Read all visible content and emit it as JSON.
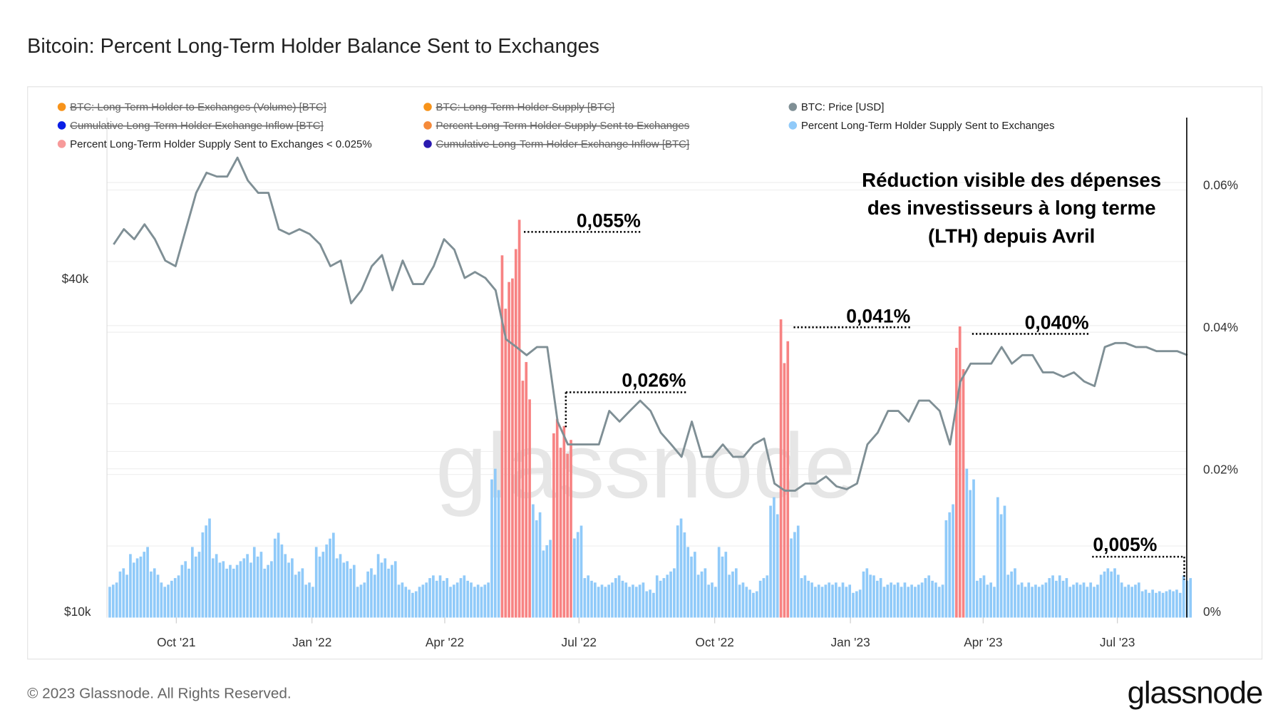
{
  "title": "Bitcoin: Percent Long-Term Holder Balance Sent to Exchanges",
  "footer": {
    "copyright": "© 2023 Glassnode. All Rights Reserved.",
    "logo": "glassnode"
  },
  "watermark": "glassnode",
  "legend": [
    {
      "label": "BTC: Long-Term Holder to Exchanges (Volume) [BTC]",
      "color": "#f7931a",
      "disabled": true
    },
    {
      "label": "BTC: Long-Term Holder Supply [BTC]",
      "color": "#f7931a",
      "disabled": true
    },
    {
      "label": "BTC: Price [USD]",
      "color": "#7f8f95",
      "disabled": false
    },
    {
      "label": "Cumulative Long-Term Holder Exchange Inflow [BTC]",
      "color": "#0a1ee6",
      "disabled": true
    },
    {
      "label": "Percent Long-Term Holder Supply Sent to Exchanges",
      "color": "#f58a3a",
      "disabled": true
    },
    {
      "label": "Percent Long-Term Holder Supply Sent to Exchanges",
      "color": "#90caf9",
      "disabled": false
    },
    {
      "label": "Percent Long-Term Holder Supply Sent to Exchanges < 0.025%",
      "color": "#f79a9a",
      "disabled": false
    },
    {
      "label": "Cumulative Long-Term Holder Exchange Inflow [BTC]",
      "color": "#2a1ab0",
      "disabled": true
    }
  ],
  "note": [
    "Réduction visible des dépenses",
    "des investisseurs à long terme",
    "(LTH) depuis Avril"
  ],
  "annotations": [
    "0,055%",
    "0,026%",
    "0,041%",
    "0,040%",
    "0,005%"
  ],
  "colors": {
    "price": "#7f8f95",
    "bars": "#90caf9",
    "highlight": "#f78383"
  },
  "chart_data": {
    "type": "bar+line",
    "x_ticks": [
      "Oct '21",
      "Jan '22",
      "Apr '22",
      "Jul '22",
      "Oct '22",
      "Jan '23",
      "Apr '23",
      "Jul '23"
    ],
    "left_axis": {
      "ticks": [
        "$10k",
        "$40k"
      ],
      "scale": "log"
    },
    "right_axis": {
      "ticks": [
        "0%",
        "0.02%",
        "0.04%",
        "0.06%"
      ],
      "range": [
        0,
        0.07
      ]
    },
    "highlight_threshold": 0.025,
    "grid": true,
    "legend_placement": "top-left",
    "week_start": "2021-08-16",
    "x_interval": "weekly",
    "price_usd": [
      46000,
      49000,
      47000,
      50000,
      47000,
      43000,
      42000,
      49000,
      57000,
      62000,
      61000,
      61000,
      66000,
      60000,
      57000,
      57000,
      49000,
      48000,
      49000,
      48000,
      46000,
      42000,
      43000,
      36000,
      38000,
      42000,
      44000,
      38000,
      43000,
      39000,
      39000,
      42000,
      47000,
      45000,
      40000,
      41000,
      40000,
      38000,
      31000,
      30000,
      29000,
      30000,
      30000,
      22000,
      20000,
      20000,
      20000,
      20000,
      23000,
      22000,
      23000,
      24000,
      23000,
      21000,
      20000,
      19000,
      22000,
      19000,
      19000,
      20000,
      19000,
      19000,
      20000,
      20500,
      17000,
      16500,
      16500,
      17000,
      17000,
      17500,
      16800,
      16600,
      17000,
      20000,
      21000,
      23000,
      23000,
      22000,
      24000,
      24000,
      23000,
      20000,
      26000,
      28000,
      28000,
      28000,
      30000,
      28000,
      29000,
      29000,
      27000,
      27000,
      26500,
      27000,
      26000,
      25500,
      30000,
      30500,
      30500,
      30000,
      30000,
      29500,
      29500,
      29500,
      29000
    ],
    "percent_sent": [
      0.004,
      0.006,
      0.008,
      0.009,
      0.006,
      0.004,
      0.005,
      0.007,
      0.009,
      0.013,
      0.008,
      0.007,
      0.007,
      0.008,
      0.009,
      0.007,
      0.011,
      0.008,
      0.006,
      0.004,
      0.009,
      0.011,
      0.008,
      0.007,
      0.004,
      0.006,
      0.008,
      0.007,
      0.004,
      0.003,
      0.004,
      0.005,
      0.005,
      0.004,
      0.005,
      0.004,
      0.004,
      0.02,
      0.05,
      0.055,
      0.035,
      0.015,
      0.01,
      0.027,
      0.026,
      0.012,
      0.005,
      0.004,
      0.004,
      0.005,
      0.004,
      0.004,
      0.003,
      0.005,
      0.006,
      0.013,
      0.009,
      0.006,
      0.004,
      0.009,
      0.006,
      0.004,
      0.003,
      0.005,
      0.016,
      0.041,
      0.012,
      0.005,
      0.004,
      0.004,
      0.004,
      0.004,
      0.003,
      0.006,
      0.005,
      0.004,
      0.004,
      0.004,
      0.004,
      0.005,
      0.004,
      0.015,
      0.04,
      0.02,
      0.005,
      0.004,
      0.016,
      0.006,
      0.004,
      0.004,
      0.004,
      0.005,
      0.005,
      0.004,
      0.004,
      0.004,
      0.006,
      0.006,
      0.004,
      0.004,
      0.003,
      0.003,
      0.003,
      0.003,
      0.005
    ]
  }
}
